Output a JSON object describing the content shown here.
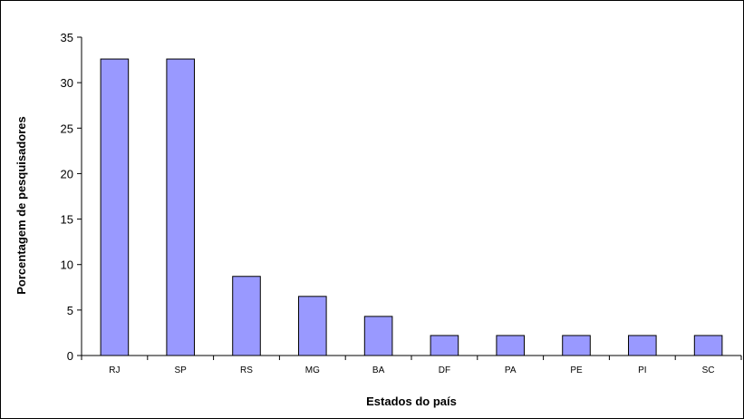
{
  "chart_data": {
    "type": "bar",
    "title": "",
    "xlabel": "Estados do país",
    "ylabel": "Porcentagem de pesquisadores",
    "categories": [
      "RJ",
      "SP",
      "RS",
      "MG",
      "BA",
      "DF",
      "PA",
      "PE",
      "PI",
      "SC"
    ],
    "values": [
      32.6,
      32.6,
      8.7,
      6.5,
      4.3,
      2.2,
      2.2,
      2.2,
      2.2,
      2.2
    ],
    "ylim": [
      0,
      35
    ],
    "yticks": [
      0,
      5,
      10,
      15,
      20,
      25,
      30,
      35
    ],
    "grid": false,
    "legend": "none",
    "colors": {
      "bar_fill": "#9999ff",
      "bar_stroke": "#000000",
      "axis": "#000000"
    }
  }
}
